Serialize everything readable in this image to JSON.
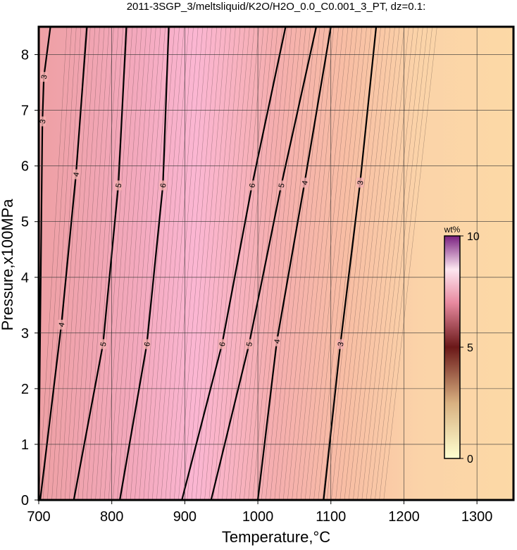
{
  "chart_data": {
    "type": "contour",
    "title": "2011-3SGP_3/meltsliquid/K2O/H2O_0.0_C0.001_3_PT, dz=0.1:",
    "xlabel": "Temperature,°C",
    "ylabel": "Pressure,x100MPa",
    "xlim": [
      700,
      1350
    ],
    "ylim": [
      0,
      8.5
    ],
    "xticks": [
      700,
      800,
      900,
      1000,
      1100,
      1200,
      1300
    ],
    "yticks": [
      0,
      1,
      2,
      3,
      4,
      5,
      6,
      7,
      8
    ],
    "grid": true,
    "contours": [
      {
        "level": 3,
        "x": [
          700,
          705,
          707,
          716
        ],
        "y": [
          0.6,
          6.8,
          7.6,
          8.5
        ]
      },
      {
        "level": 4,
        "x": [
          702,
          731,
          751,
          766
        ],
        "y": [
          0,
          3.15,
          5.85,
          8.5
        ]
      },
      {
        "level": 5,
        "x": [
          748,
          788,
          809,
          820
        ],
        "y": [
          0,
          2.8,
          5.65,
          8.5
        ]
      },
      {
        "level": 6,
        "x": [
          811,
          848,
          870,
          878
        ],
        "y": [
          0,
          2.8,
          5.65,
          8.5
        ]
      },
      {
        "level": 6,
        "x": [
          896,
          951,
          992,
          1038
        ],
        "y": [
          0,
          2.8,
          5.65,
          8.5
        ]
      },
      {
        "level": 5,
        "x": [
          936,
          988,
          1032,
          1080
        ],
        "y": [
          0,
          2.8,
          5.65,
          8.5
        ]
      },
      {
        "level": 4,
        "x": [
          1000,
          1026,
          1064,
          1100
        ],
        "y": [
          0,
          2.85,
          5.7,
          8.5
        ]
      },
      {
        "level": 3,
        "x": [
          1090,
          1113,
          1140,
          1162
        ],
        "y": [
          0,
          2.8,
          5.7,
          8.5
        ]
      }
    ],
    "colorbar": {
      "label": "wt%",
      "lim": [
        0,
        10
      ],
      "ticks": [
        0,
        5,
        10
      ]
    }
  }
}
